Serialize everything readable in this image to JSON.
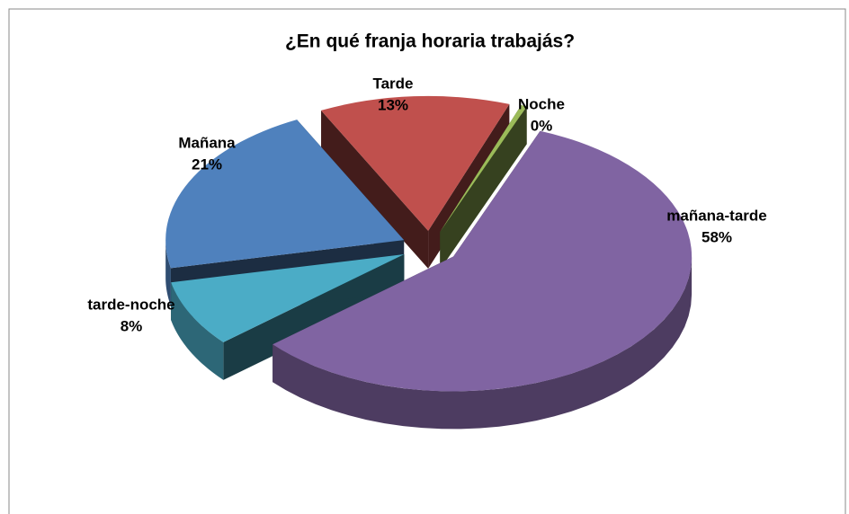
{
  "chart_data": {
    "type": "pie",
    "title": "¿En qué franja horaria trabajás?",
    "categories": [
      "Mañana",
      "Tarde",
      "Noche",
      "mañana-tarde",
      "tarde-noche"
    ],
    "values": [
      21,
      13,
      0.4,
      58,
      8
    ],
    "value_labels": [
      "21%",
      "13%",
      "0%",
      "58%",
      "8%"
    ],
    "colors": [
      "#4f81bd",
      "#c0504d",
      "#9bbb59",
      "#8064a2",
      "#4bacc6"
    ]
  }
}
